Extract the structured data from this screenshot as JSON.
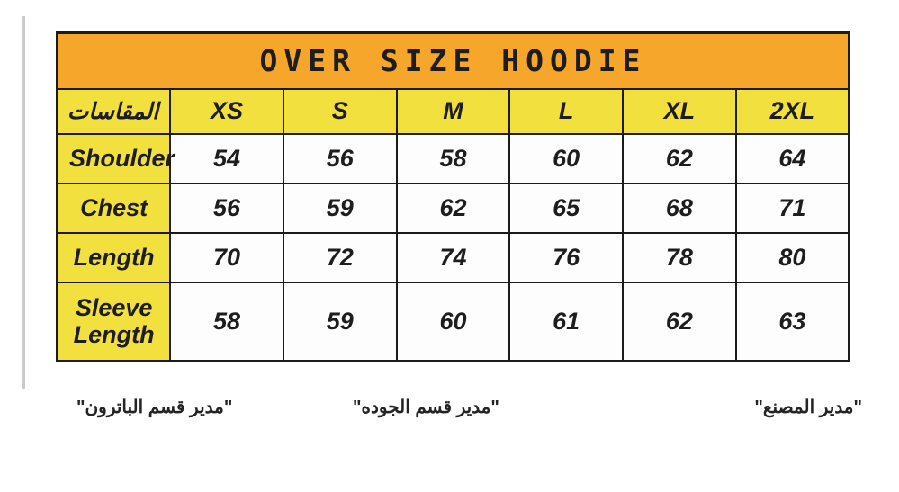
{
  "chart_data": {
    "type": "table",
    "title": "OVER SIZE HOODIE",
    "columns": [
      "المقاسات",
      "XS",
      "S",
      "M",
      "L",
      "XL",
      "2XL"
    ],
    "rows": [
      [
        "Shoulder",
        "54",
        "56",
        "58",
        "60",
        "62",
        "64"
      ],
      [
        "Chest",
        "56",
        "59",
        "62",
        "65",
        "68",
        "71"
      ],
      [
        "Length",
        "70",
        "72",
        "74",
        "76",
        "78",
        "80"
      ],
      [
        "Sleeve Length",
        "58",
        "59",
        "60",
        "61",
        "62",
        "63"
      ]
    ]
  },
  "signatures": [
    {
      "label": "\"مدير قسم الباترون\""
    },
    {
      "label": "\"مدير قسم الجوده\""
    },
    {
      "label": "\"مدير المصنع\""
    }
  ],
  "colors": {
    "title_orange": "#f6a62b",
    "label_yellow": "#f1e03d",
    "border_black": "#1b1b1b",
    "margin_line_gray": "#cbcbcb"
  }
}
